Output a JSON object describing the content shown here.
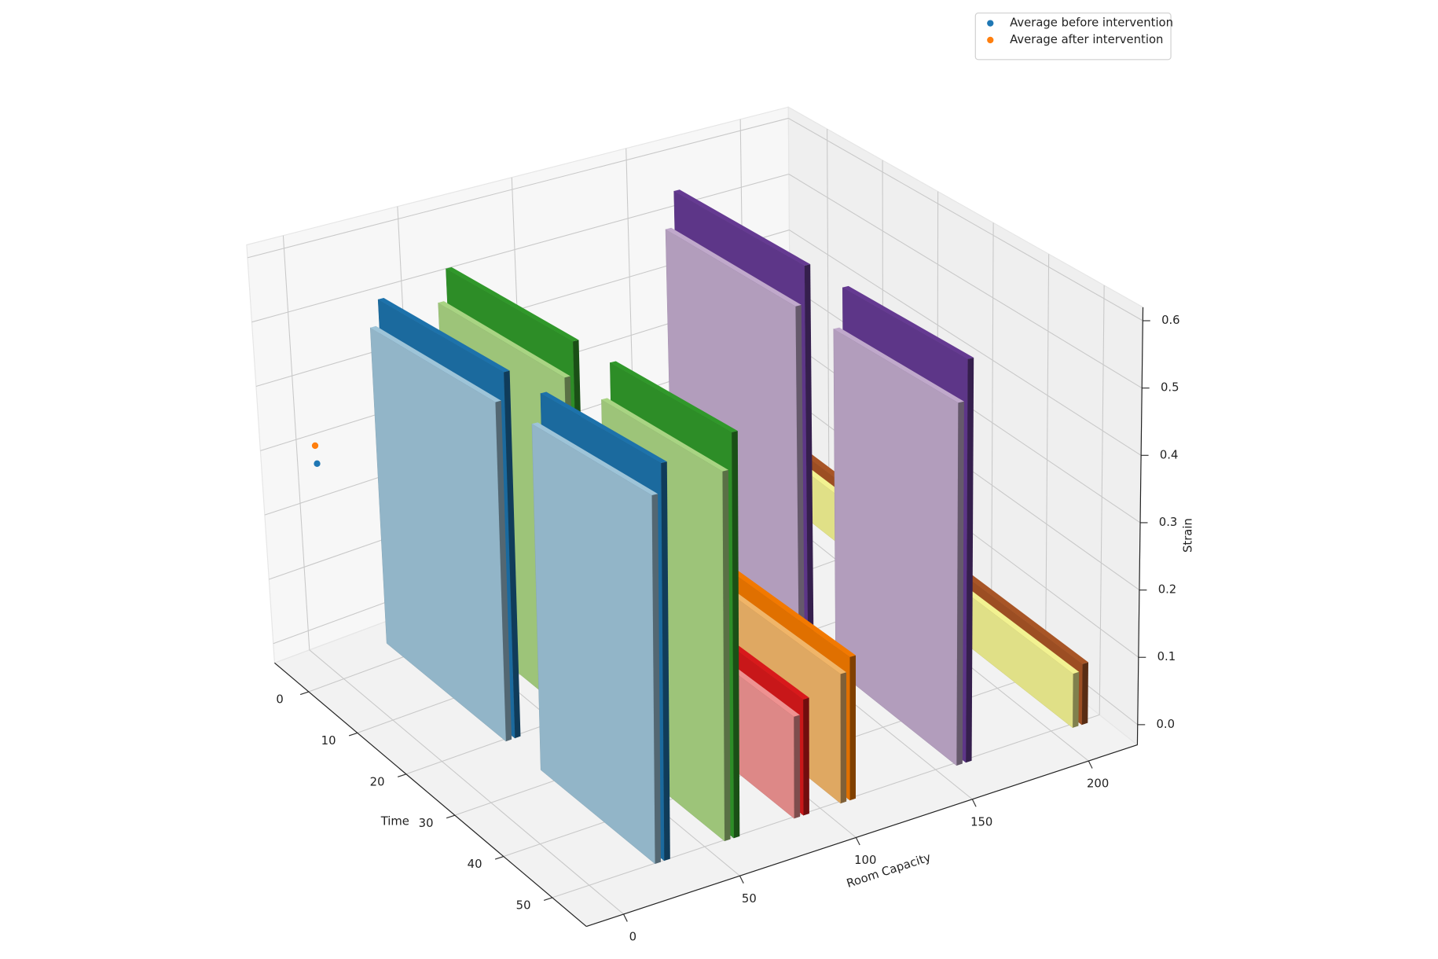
{
  "chart_data": {
    "type": "bar3d",
    "xlabel": "Time",
    "ylabel": "Room Capacity",
    "zlabel": "Strain",
    "xlim": [
      -7,
      57
    ],
    "ylim": [
      -16,
      221
    ],
    "zlim": [
      -0.03,
      0.62
    ],
    "xticks": [
      0,
      10,
      20,
      30,
      40,
      50
    ],
    "yticks": [
      0,
      50,
      100,
      150,
      200
    ],
    "zticks": [
      {
        "value": 0,
        "label": "0.0"
      },
      {
        "value": 0.1,
        "label": "0.1"
      },
      {
        "value": 0.2,
        "label": "0.2"
      },
      {
        "value": 0.3,
        "label": "0.3"
      },
      {
        "value": 0.4,
        "label": "0.4"
      },
      {
        "value": 0.5,
        "label": "0.5"
      },
      {
        "value": 0.6,
        "label": "0.6"
      }
    ],
    "grid": true,
    "legend_loc": "upper right",
    "bars": [
      {
        "x": 0,
        "dx": 24,
        "y": 204,
        "dy": 2.5,
        "z": 0.09,
        "color": "#b15928"
      },
      {
        "x": 31,
        "dx": 23,
        "y": 204,
        "dy": 2.5,
        "z": 0.09,
        "color": "#b15928"
      },
      {
        "x": 0,
        "dx": 24,
        "y": 200,
        "dy": 2.5,
        "z": 0.08,
        "color": "#ffff99"
      },
      {
        "x": 31,
        "dx": 23,
        "y": 200,
        "dy": 2.5,
        "z": 0.08,
        "color": "#ffff99"
      },
      {
        "x": 0,
        "dx": 24,
        "y": 154,
        "dy": 2.5,
        "z": 0.58,
        "color": "#6a3d9a"
      },
      {
        "x": 31,
        "dx": 23,
        "y": 154,
        "dy": 2.5,
        "z": 0.58,
        "color": "#6a3d9a"
      },
      {
        "x": 0,
        "dx": 24,
        "y": 150,
        "dy": 2.5,
        "z": 0.52,
        "color": "#cab2d6"
      },
      {
        "x": 31,
        "dx": 23,
        "y": 150,
        "dy": 2.5,
        "z": 0.52,
        "color": "#cab2d6"
      },
      {
        "x": 31,
        "dx": 23,
        "y": 104,
        "dy": 2.5,
        "z": 0.2,
        "color": "#ff7f00"
      },
      {
        "x": 31,
        "dx": 23,
        "y": 100,
        "dy": 2.5,
        "z": 0.18,
        "color": "#fdbf6f"
      },
      {
        "x": 31,
        "dx": 23,
        "y": 84,
        "dy": 2.5,
        "z": 0.16,
        "color": "#e31a1c"
      },
      {
        "x": 31,
        "dx": 23,
        "y": 80,
        "dy": 2.5,
        "z": 0.14,
        "color": "#fb9a99"
      },
      {
        "x": 0,
        "dx": 24,
        "y": 54,
        "dy": 2.5,
        "z": 0.55,
        "color": "#33a02c"
      },
      {
        "x": 31,
        "dx": 23,
        "y": 54,
        "dy": 2.5,
        "z": 0.55,
        "color": "#33a02c"
      },
      {
        "x": 0,
        "dx": 24,
        "y": 50,
        "dy": 2.5,
        "z": 0.5,
        "color": "#b2df8a"
      },
      {
        "x": 31,
        "dx": 23,
        "y": 50,
        "dy": 2.5,
        "z": 0.5,
        "color": "#b2df8a"
      },
      {
        "x": 0,
        "dx": 24,
        "y": 24,
        "dy": 2.5,
        "z": 0.53,
        "color": "#1f78b4"
      },
      {
        "x": 31,
        "dx": 23,
        "y": 24,
        "dy": 2.5,
        "z": 0.53,
        "color": "#1f78b4"
      },
      {
        "x": 0,
        "dx": 24,
        "y": 20,
        "dy": 2.5,
        "z": 0.49,
        "color": "#a6cee3"
      },
      {
        "x": 31,
        "dx": 23,
        "y": 20,
        "dy": 2.5,
        "z": 0.49,
        "color": "#a6cee3"
      }
    ],
    "series": [
      {
        "name": "Average before intervention",
        "color": "#1f77b4",
        "x": [
          4.5
        ],
        "y": [
          -16
        ],
        "z": [
          0.34
        ]
      },
      {
        "name": "Average after intervention",
        "color": "#ff7f0e",
        "x": [
          4.3
        ],
        "y": [
          -16
        ],
        "z": [
          0.366
        ]
      }
    ]
  }
}
